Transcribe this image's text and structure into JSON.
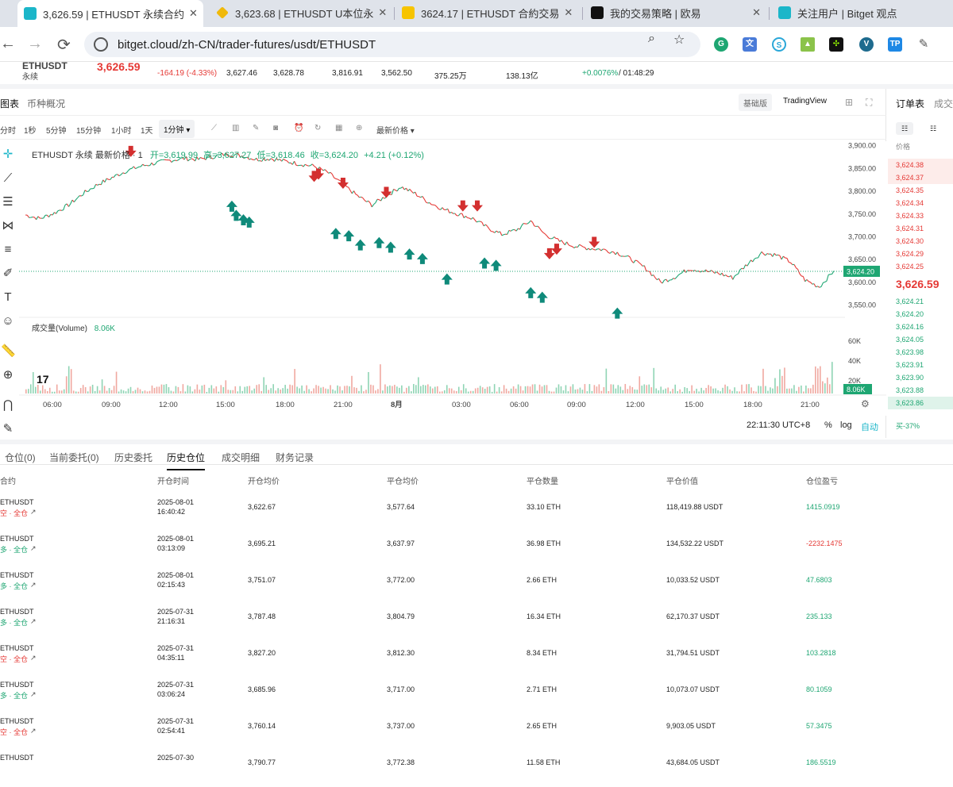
{
  "browser": {
    "tabs": [
      {
        "title": "3,626.59 | ETHUSDT 永续合约",
        "fav_color": "#1bb6c9",
        "active": true
      },
      {
        "title": "3,623.68 | ETHUSDT U本位永",
        "fav_color": "#f0b90b",
        "active": false
      },
      {
        "title": "3624.17 | ETHUSDT 合約交易",
        "fav_color": "#f7c400",
        "active": false
      },
      {
        "title": "我的交易策略 | 欧易",
        "fav_color": "#111111",
        "active": false
      },
      {
        "title": "关注用户 | Bitget 观点",
        "fav_color": "#1bb6c9",
        "active": false
      }
    ],
    "url": "bitget.cloud/zh-CN/trader-futures/usdt/ETHUSDT"
  },
  "ticker": {
    "price": "3,626.59",
    "product": "永续",
    "change": "-164.19 (-4.33%)",
    "index_price": "3,627.46",
    "mark_price": "3,628.78",
    "high_24h": "3,816.91",
    "low_24h": "3,562.50",
    "volume_24h": "375.25万",
    "turnover_24h": "138.13亿",
    "funding": "+0.0076%",
    "countdown": "/ 01:48:29"
  },
  "chart_panel": {
    "tab_chart": "图表",
    "tab_overview": "币种概况",
    "mode_basic": "基础版",
    "mode_tv": "TradingView",
    "intervals": [
      "分时",
      "1秒",
      "5分钟",
      "15分钟",
      "1小时",
      "1天"
    ],
    "selected_interval": "1分钟",
    "price_type": "最新价格",
    "legend_symbol": "ETHUSDT 永续 最新价格 · 1",
    "legend_open": "开=3,619.99",
    "legend_high": "高=3,627.27",
    "legend_low": "低=3,618.46",
    "legend_close": "收=3,624.20",
    "legend_change": "+4.21 (+0.12%)",
    "volume_label": "成交量(Volume)",
    "volume_value": "8.06K",
    "time_display": "22:11:30 UTC+8",
    "percent": "%",
    "log": "log",
    "auto": "自动"
  },
  "chart_data": {
    "type": "line",
    "title": "ETHUSDT 永续 最新价格 · 1",
    "x_ticks": [
      "06:00",
      "09:00",
      "12:00",
      "15:00",
      "18:00",
      "21:00",
      "8月",
      "03:00",
      "06:00",
      "09:00",
      "12:00",
      "15:00",
      "18:00",
      "21:00"
    ],
    "y_ticks": [
      3550,
      3600,
      3650,
      3700,
      3750,
      3800,
      3850,
      3900
    ],
    "ylim": [
      3530,
      3910
    ],
    "last_price_label": "3,624.20",
    "series": [
      {
        "values": [
          3748,
          3740,
          3752,
          3770,
          3795,
          3815,
          3830,
          3845,
          3855,
          3862,
          3868,
          3872,
          3870,
          3876,
          3882,
          3878,
          3870,
          3872,
          3866,
          3860,
          3855,
          3840,
          3815,
          3790,
          3770,
          3790,
          3810,
          3795,
          3775,
          3760,
          3750,
          3740,
          3720,
          3705,
          3715,
          3735,
          3705,
          3690,
          3680,
          3675,
          3672,
          3665,
          3650,
          3630,
          3600,
          3612,
          3630,
          3625,
          3620,
          3610,
          3640,
          3665,
          3660,
          3645,
          3605,
          3590,
          3625
        ]
      }
    ],
    "volume": {
      "yticks": [
        "60K",
        "40K",
        "20K"
      ],
      "last_label": "8.06K"
    },
    "buy_markers": [
      {
        "x": 14.3,
        "y": 3790
      },
      {
        "x": 14.6,
        "y": 3770
      },
      {
        "x": 15.1,
        "y": 3760
      },
      {
        "x": 15.5,
        "y": 3755
      },
      {
        "x": 21.5,
        "y": 3730
      },
      {
        "x": 22.4,
        "y": 3725
      },
      {
        "x": 23.2,
        "y": 3705
      },
      {
        "x": 24.5,
        "y": 3710
      },
      {
        "x": 25.3,
        "y": 3700
      },
      {
        "x": 26.6,
        "y": 3685
      },
      {
        "x": 27.5,
        "y": 3675
      },
      {
        "x": 29.2,
        "y": 3630
      },
      {
        "x": 31.8,
        "y": 3665
      },
      {
        "x": 32.6,
        "y": 3660
      },
      {
        "x": 35.0,
        "y": 3600
      },
      {
        "x": 35.8,
        "y": 3590
      },
      {
        "x": 41.0,
        "y": 3555
      }
    ],
    "sell_markers": [
      {
        "x": 7.3,
        "y": 3865
      },
      {
        "x": 20.0,
        "y": 3810
      },
      {
        "x": 20.3,
        "y": 3815
      },
      {
        "x": 22.0,
        "y": 3795
      },
      {
        "x": 25.0,
        "y": 3775
      },
      {
        "x": 30.3,
        "y": 3745
      },
      {
        "x": 31.3,
        "y": 3745
      },
      {
        "x": 36.3,
        "y": 3640
      },
      {
        "x": 36.8,
        "y": 3650
      },
      {
        "x": 39.4,
        "y": 3665
      }
    ]
  },
  "orderbook": {
    "tab_book": "订单表",
    "tab_trades": "成交",
    "header": "价格",
    "asks": [
      "3,624.38",
      "3,624.37",
      "3,624.35",
      "3,624.34",
      "3,624.33",
      "3,624.31",
      "3,624.30",
      "3,624.29",
      "3,624.25"
    ],
    "mid": "3,626.59",
    "bids": [
      "3,624.21",
      "3,624.20",
      "3,624.16",
      "3,624.05",
      "3,623.98",
      "3,623.91",
      "3,623.90",
      "3,623.88",
      "3,623.86"
    ],
    "ratio": "买-37%"
  },
  "bottom": {
    "tabs": [
      "仓位(0)",
      "当前委托(0)",
      "历史委托",
      "历史仓位",
      "成交明细",
      "财务记录"
    ],
    "active_tab": 3,
    "columns": [
      "合约",
      "开仓时间",
      "开仓均价",
      "平仓均价",
      "平仓数量",
      "平仓价值",
      "仓位盈亏"
    ],
    "rows": [
      {
        "symbol": "ETHUSDT",
        "side": "空 · 全仓",
        "side_color": "red",
        "date": "2025-08-01",
        "time": "16:40:42",
        "open": "3,622.67",
        "close": "3,577.64",
        "qty": "33.10 ETH",
        "value": "118,419.88 USDT",
        "pnl": "1415.0919",
        "pnl_color": "green"
      },
      {
        "symbol": "ETHUSDT",
        "side": "多 · 全仓",
        "side_color": "green",
        "date": "2025-08-01",
        "time": "03:13:09",
        "open": "3,695.21",
        "close": "3,637.97",
        "qty": "36.98 ETH",
        "value": "134,532.22 USDT",
        "pnl": "-2232.1475",
        "pnl_color": "red"
      },
      {
        "symbol": "ETHUSDT",
        "side": "多 · 全仓",
        "side_color": "green",
        "date": "2025-08-01",
        "time": "02:15:43",
        "open": "3,751.07",
        "close": "3,772.00",
        "qty": "2.66 ETH",
        "value": "10,033.52 USDT",
        "pnl": "47.6803",
        "pnl_color": "green"
      },
      {
        "symbol": "ETHUSDT",
        "side": "多 · 全仓",
        "side_color": "green",
        "date": "2025-07-31",
        "time": "21:16:31",
        "open": "3,787.48",
        "close": "3,804.79",
        "qty": "16.34 ETH",
        "value": "62,170.37 USDT",
        "pnl": "235.133",
        "pnl_color": "green"
      },
      {
        "symbol": "ETHUSDT",
        "side": "空 · 全仓",
        "side_color": "red",
        "date": "2025-07-31",
        "time": "04:35:11",
        "open": "3,827.20",
        "close": "3,812.30",
        "qty": "8.34 ETH",
        "value": "31,794.51 USDT",
        "pnl": "103.2818",
        "pnl_color": "green"
      },
      {
        "symbol": "ETHUSDT",
        "side": "多 · 全仓",
        "side_color": "green",
        "date": "2025-07-31",
        "time": "03:06:24",
        "open": "3,685.96",
        "close": "3,717.00",
        "qty": "2.71 ETH",
        "value": "10,073.07 USDT",
        "pnl": "80.1059",
        "pnl_color": "green"
      },
      {
        "symbol": "ETHUSDT",
        "side": "空 · 全仓",
        "side_color": "red",
        "date": "2025-07-31",
        "time": "02:54:41",
        "open": "3,760.14",
        "close": "3,737.00",
        "qty": "2.65 ETH",
        "value": "9,903.05 USDT",
        "pnl": "57.3475",
        "pnl_color": "green"
      },
      {
        "symbol": "ETHUSDT",
        "side": "",
        "side_color": "red",
        "date": "2025-07-30",
        "time": "",
        "open": "3,790.77",
        "close": "3,772.38",
        "qty": "11.58 ETH",
        "value": "43,684.05 USDT",
        "pnl": "186.5519",
        "pnl_color": "green"
      }
    ]
  },
  "colors": {
    "up": "#1ea672",
    "down": "#e53935",
    "accent": "#1bb6c9"
  }
}
